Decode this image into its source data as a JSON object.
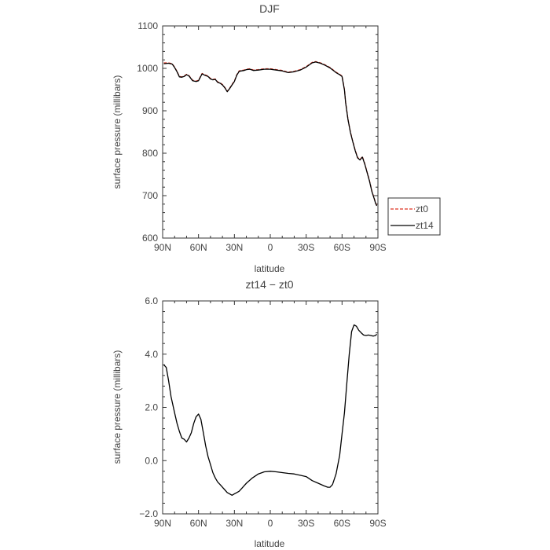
{
  "chart_data": [
    {
      "type": "line",
      "title": "DJF",
      "xlabel": "latitude",
      "ylabel": "surface pressure (millibars)",
      "x_range": [
        90,
        -90
      ],
      "x_ticks": [
        90,
        60,
        30,
        0,
        -30,
        -60,
        -90
      ],
      "x_tick_labels": [
        "90N",
        "60N",
        "30N",
        "0",
        "30S",
        "60S",
        "90S"
      ],
      "ylim": [
        600,
        1100
      ],
      "y_ticks": [
        600,
        700,
        800,
        900,
        1000,
        1100
      ],
      "y_tick_labels": [
        "600",
        "700",
        "800",
        "900",
        "1000",
        "1100"
      ],
      "grid": false,
      "legend_position": "right, outside bottom",
      "x": [
        89,
        85,
        82,
        80,
        78,
        76,
        74,
        72,
        70,
        68,
        65,
        62,
        60,
        57,
        55,
        52,
        50,
        48,
        46,
        44,
        42,
        40,
        38,
        36,
        34,
        32,
        30,
        28,
        26,
        24,
        22,
        20,
        17,
        14,
        10,
        5,
        0,
        -5,
        -10,
        -15,
        -20,
        -25,
        -30,
        -35,
        -38,
        -42,
        -46,
        -50,
        -55,
        -58,
        -60,
        -62,
        -63,
        -65,
        -67,
        -69,
        -71,
        -73,
        -75,
        -77,
        -79,
        -81,
        -83,
        -85,
        -87,
        -88,
        -89
      ],
      "series": [
        {
          "name": "zt0",
          "color": "#dd3322",
          "dash": "dashed",
          "values": [
            1013,
            1013,
            1011,
            1003,
            993,
            981,
            980,
            982,
            986,
            983,
            972,
            970,
            972,
            988,
            985,
            982,
            976,
            974,
            975,
            968,
            966,
            962,
            955,
            946,
            953,
            962,
            970,
            985,
            994,
            995,
            996,
            998,
            999,
            996,
            997,
            999,
            999,
            997,
            995,
            991,
            993,
            997,
            1004,
            1014,
            1016,
            1013,
            1008,
            1002,
            991,
            986,
            982,
            950,
            920,
            880,
            850,
            828,
            807,
            790,
            785,
            792,
            775,
            755,
            735,
            710,
            693,
            683,
            677
          ]
        },
        {
          "name": "zt14",
          "color": "#000000",
          "dash": "solid",
          "values": [
            1011,
            1012,
            1010,
            1002,
            992,
            980,
            979,
            981,
            985,
            982,
            971,
            969,
            971,
            987,
            984,
            981,
            975,
            973,
            974,
            967,
            965,
            961,
            954,
            945,
            952,
            961,
            969,
            984,
            993,
            994,
            995,
            997,
            998,
            995,
            996,
            998,
            998,
            996,
            994,
            990,
            992,
            996,
            1003,
            1013,
            1015,
            1012,
            1007,
            1001,
            990,
            985,
            981,
            949,
            919,
            879,
            849,
            827,
            806,
            789,
            784,
            791,
            774,
            754,
            734,
            709,
            692,
            682,
            676
          ]
        }
      ]
    },
    {
      "type": "line",
      "title": "zt14 − zt0",
      "xlabel": "latitude",
      "ylabel": "surface pressure (millibars)",
      "x_range": [
        90,
        -90
      ],
      "x_ticks": [
        90,
        60,
        30,
        0,
        -30,
        -60,
        -90
      ],
      "x_tick_labels": [
        "90N",
        "60N",
        "30N",
        "0",
        "30S",
        "60S",
        "90S"
      ],
      "ylim": [
        -2,
        6
      ],
      "y_ticks": [
        -2,
        0,
        2,
        4,
        6
      ],
      "y_tick_labels": [
        "−2.0",
        "0.0",
        "2.0",
        "4.0",
        "6.0"
      ],
      "grid": false,
      "x": [
        89,
        87,
        85,
        83,
        80,
        78,
        76,
        74,
        72,
        70,
        68,
        66,
        64,
        62,
        60,
        58,
        56,
        54,
        52,
        50,
        48,
        46,
        44,
        42,
        40,
        38,
        36,
        34,
        32,
        30,
        28,
        26,
        24,
        22,
        20,
        15,
        10,
        5,
        0,
        -5,
        -10,
        -15,
        -20,
        -25,
        -30,
        -35,
        -40,
        -45,
        -48,
        -50,
        -52,
        -55,
        -58,
        -60,
        -62,
        -64,
        -66,
        -68,
        -70,
        -72,
        -74,
        -76,
        -78,
        -80,
        -82,
        -84,
        -86,
        -88,
        -89
      ],
      "series": [
        {
          "color": "#000000",
          "values": [
            3.6,
            3.5,
            3.0,
            2.4,
            1.8,
            1.4,
            1.1,
            0.85,
            0.8,
            0.7,
            0.85,
            1.05,
            1.4,
            1.65,
            1.75,
            1.55,
            1.05,
            0.55,
            0.15,
            -0.15,
            -0.45,
            -0.65,
            -0.8,
            -0.9,
            -1.0,
            -1.1,
            -1.2,
            -1.25,
            -1.3,
            -1.25,
            -1.2,
            -1.15,
            -1.05,
            -0.95,
            -0.85,
            -0.65,
            -0.5,
            -0.42,
            -0.4,
            -0.42,
            -0.45,
            -0.48,
            -0.5,
            -0.55,
            -0.6,
            -0.75,
            -0.85,
            -0.95,
            -1.0,
            -1.0,
            -0.9,
            -0.5,
            0.2,
            1.0,
            1.8,
            2.9,
            4.0,
            4.85,
            5.1,
            5.05,
            4.9,
            4.8,
            4.72,
            4.7,
            4.72,
            4.7,
            4.68,
            4.7,
            4.75
          ]
        }
      ]
    }
  ]
}
